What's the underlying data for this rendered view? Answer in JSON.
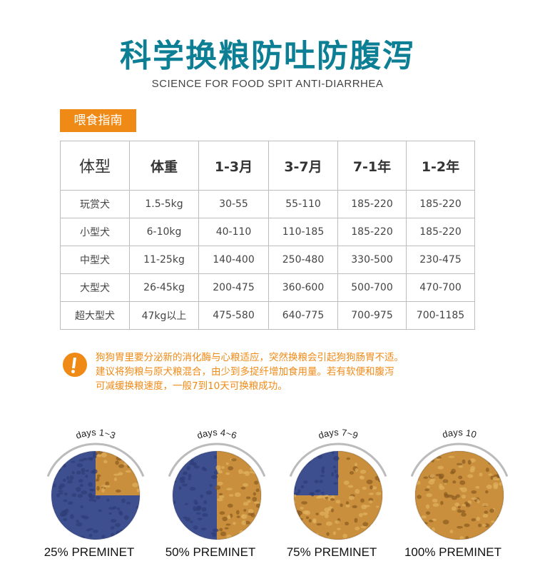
{
  "header": {
    "title": "科学换粮防吐防腹泻",
    "subtitle": "SCIENCE FOR FOOD SPIT ANTI-DIARRHEA"
  },
  "section_tag": "喂食指南",
  "table": {
    "headers": [
      "体型",
      "体重",
      "1-3月",
      "3-7月",
      "7-1年",
      "1-2年"
    ],
    "rows": [
      [
        "玩赏犬",
        "1.5-5kg",
        "30-55",
        "55-110",
        "185-220",
        "185-220"
      ],
      [
        "小型犬",
        "6-10kg",
        "40-110",
        "110-185",
        "185-220",
        "185-220"
      ],
      [
        "中型犬",
        "11-25kg",
        "140-400",
        "250-480",
        "330-500",
        "230-475"
      ],
      [
        "大型犬",
        "26-45kg",
        "200-475",
        "360-600",
        "500-700",
        "470-700"
      ],
      [
        "超大型犬",
        "47kg以上",
        "475-580",
        "640-775",
        "700-975",
        "700-1185"
      ]
    ]
  },
  "note": {
    "icon": "exclamation-icon",
    "lines": [
      "狗狗胃里要分泌新的消化酶与心粮适应，突然换粮会引起狗狗肠胃不适。",
      "建议将狗粮与原犬粮混合，由少到多捉纤增加食用量。若有软便和腹泻",
      "可减缓换粮速度，一般7到10天可换粮成功。"
    ],
    "color": "#f08a16"
  },
  "stages": [
    {
      "days": "days 1~3",
      "caption": "25% PREMINET",
      "new_food_fraction": 0.25
    },
    {
      "days": "days 4~6",
      "caption": "50% PREMINET",
      "new_food_fraction": 0.5
    },
    {
      "days": "days 7~9",
      "caption": "75% PREMINET",
      "new_food_fraction": 0.75
    },
    {
      "days": "days 10",
      "caption": "100% PREMINET",
      "new_food_fraction": 1.0
    }
  ],
  "colors": {
    "title": "#0d7f95",
    "accent": "#f08a16",
    "old_food": "#3d4f8f",
    "new_food": "#c98f3c"
  }
}
